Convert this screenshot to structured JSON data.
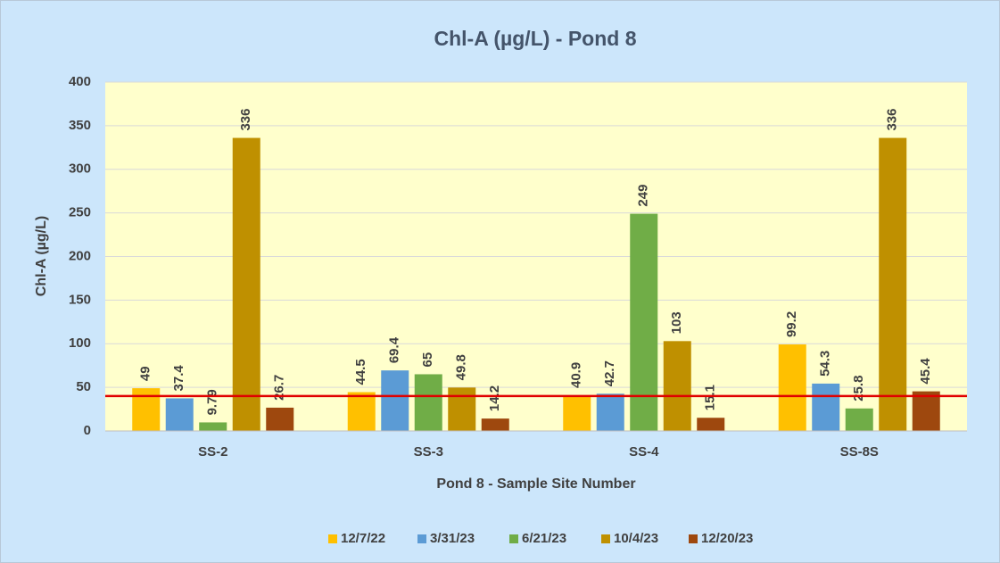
{
  "chart_data": {
    "type": "bar",
    "title": "Chl-A (µg/L) - Pond 8",
    "x_label": "Pond 8 - Sample Site Number",
    "y_label": "Chl-A (µg/L)",
    "categories": [
      "SS-2",
      "SS-3",
      "SS-4",
      "SS-8S"
    ],
    "series": [
      {
        "name": "12/7/22",
        "color": "#ffc000",
        "values": [
          49,
          44.5,
          40.9,
          99.2
        ]
      },
      {
        "name": "3/31/23",
        "color": "#5b9bd5",
        "values": [
          37.4,
          69.4,
          42.7,
          54.3
        ]
      },
      {
        "name": "6/21/23",
        "color": "#70ad47",
        "values": [
          9.79,
          65,
          249,
          25.8
        ]
      },
      {
        "name": "10/4/23",
        "color": "#bf9000",
        "values": [
          336,
          49.8,
          103,
          336
        ]
      },
      {
        "name": "12/20/23",
        "color": "#9e480e",
        "values": [
          26.7,
          14.2,
          15.1,
          45.4
        ]
      }
    ],
    "ylim": [
      0,
      400
    ],
    "yticks": [
      0,
      50,
      100,
      150,
      200,
      250,
      300,
      350,
      400
    ],
    "grid": true,
    "legend": "bottom",
    "reference_line": {
      "value": 40,
      "color": "#e00000"
    }
  }
}
